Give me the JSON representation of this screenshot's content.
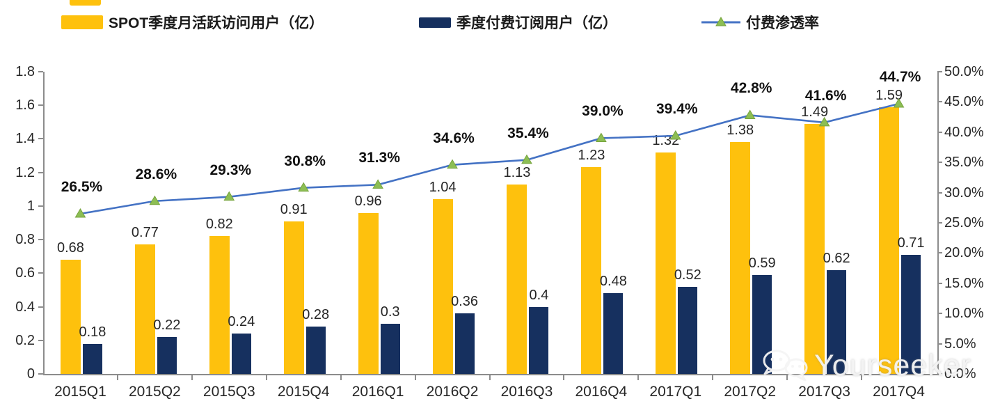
{
  "legend": {
    "items": [
      {
        "label": "SPOT季度月活跃访问用户（亿）",
        "type": "bar"
      },
      {
        "label": "季度付费订阅用户（亿）",
        "type": "bar"
      },
      {
        "label": "付费渗透率",
        "type": "line"
      }
    ]
  },
  "colors": {
    "mau_bar": "#FEC10D",
    "subs_bar": "#16305F",
    "line": "#4472C4",
    "marker_fill": "#8CBE54",
    "marker_edge": "#76A33C",
    "axis": "#8c8c8c",
    "text": "#262626"
  },
  "chart_data": {
    "type": "combo-bar-line",
    "categories": [
      "2015Q1",
      "2015Q2",
      "2015Q3",
      "2015Q4",
      "2016Q1",
      "2016Q2",
      "2016Q3",
      "2016Q4",
      "2017Q1",
      "2017Q2",
      "2017Q3",
      "2017Q4"
    ],
    "series": [
      {
        "name": "SPOT季度月活跃访问用户（亿）",
        "type": "bar",
        "axis": "left",
        "values": [
          0.68,
          0.77,
          0.82,
          0.91,
          0.96,
          1.04,
          1.13,
          1.23,
          1.32,
          1.38,
          1.49,
          1.59
        ],
        "labels": [
          "0.68",
          "0.77",
          "0.82",
          "0.91",
          "0.96",
          "1.04",
          "1.13",
          "1.23",
          "1.32",
          "1.38",
          "1.49",
          "1.59"
        ]
      },
      {
        "name": "季度付费订阅用户（亿）",
        "type": "bar",
        "axis": "left",
        "values": [
          0.18,
          0.22,
          0.24,
          0.28,
          0.3,
          0.36,
          0.4,
          0.48,
          0.52,
          0.59,
          0.62,
          0.71
        ],
        "labels": [
          "0.18",
          "0.22",
          "0.24",
          "0.28",
          "0.3",
          "0.36",
          "0.4",
          "0.48",
          "0.52",
          "0.59",
          "0.62",
          "0.71"
        ]
      },
      {
        "name": "付费渗透率",
        "type": "line",
        "axis": "right",
        "values": [
          26.5,
          28.6,
          29.3,
          30.8,
          31.3,
          34.6,
          35.4,
          39.0,
          39.4,
          42.8,
          41.6,
          44.7
        ],
        "labels": [
          "26.5%",
          "28.6%",
          "29.3%",
          "30.8%",
          "31.3%",
          "34.6%",
          "35.4%",
          "39.0%",
          "39.4%",
          "42.8%",
          "41.6%",
          "44.7%"
        ]
      }
    ],
    "left_axis": {
      "min": 0,
      "max": 1.8,
      "tick_step": 0.2,
      "tick_labels": [
        "0",
        "0.2",
        "0.4",
        "0.6",
        "0.8",
        "1",
        "1.2",
        "1.4",
        "1.6",
        "1.8"
      ]
    },
    "right_axis": {
      "min": 0,
      "max": 50,
      "tick_step": 5,
      "tick_labels": [
        "0.0%",
        "5.0%",
        "10.0%",
        "15.0%",
        "20.0%",
        "25.0%",
        "30.0%",
        "35.0%",
        "40.0%",
        "45.0%",
        "50.0%"
      ]
    },
    "grid": false,
    "legend_position": "top"
  },
  "watermark": {
    "text": "Yourseeker",
    "icon": "wechat-icon"
  }
}
